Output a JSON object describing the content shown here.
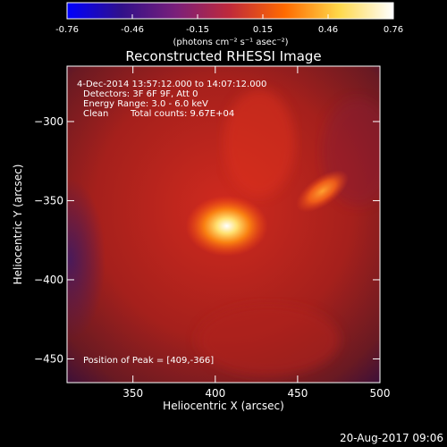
{
  "colorbar": {
    "ticks": [
      "-0.76",
      "-0.46",
      "-0.15",
      "0.15",
      "0.46",
      "0.76"
    ],
    "unit_label": "(photons cm⁻² s⁻¹ asec⁻²)",
    "colors": [
      "#0000ff",
      "#30108a",
      "#7a1f7a",
      "#c02a3a",
      "#ff6a00",
      "#ffd84a",
      "#ffffff"
    ]
  },
  "chart_data": {
    "type": "heatmap",
    "title": "Reconstructed RHESSI Image",
    "xlabel": "Heliocentric X (arcsec)",
    "ylabel": "Heliocentric Y (arcsec)",
    "xlim": [
      310,
      500
    ],
    "ylim": [
      -465,
      -265
    ],
    "xticks": [
      350,
      400,
      450,
      500
    ],
    "yticks": [
      -300,
      -350,
      -400,
      -450
    ],
    "sources": [
      {
        "x": 407,
        "y": -366,
        "peak": 0.76
      },
      {
        "x": 465,
        "y": -344,
        "peak": 0.42
      }
    ],
    "annotations": {
      "time": "4-Dec-2014 13:57:12.000 to 14:07:12.000",
      "detectors": "Detectors: 3F 6F 9F, Att 0",
      "energy": "Energy Range: 3.0 - 6.0 keV",
      "method": "Clean",
      "counts": "Total counts: 9.67E+04",
      "peak": "Position of Peak = [409,-366]"
    }
  },
  "footer": {
    "date": "20-Aug-2017 09:06"
  }
}
